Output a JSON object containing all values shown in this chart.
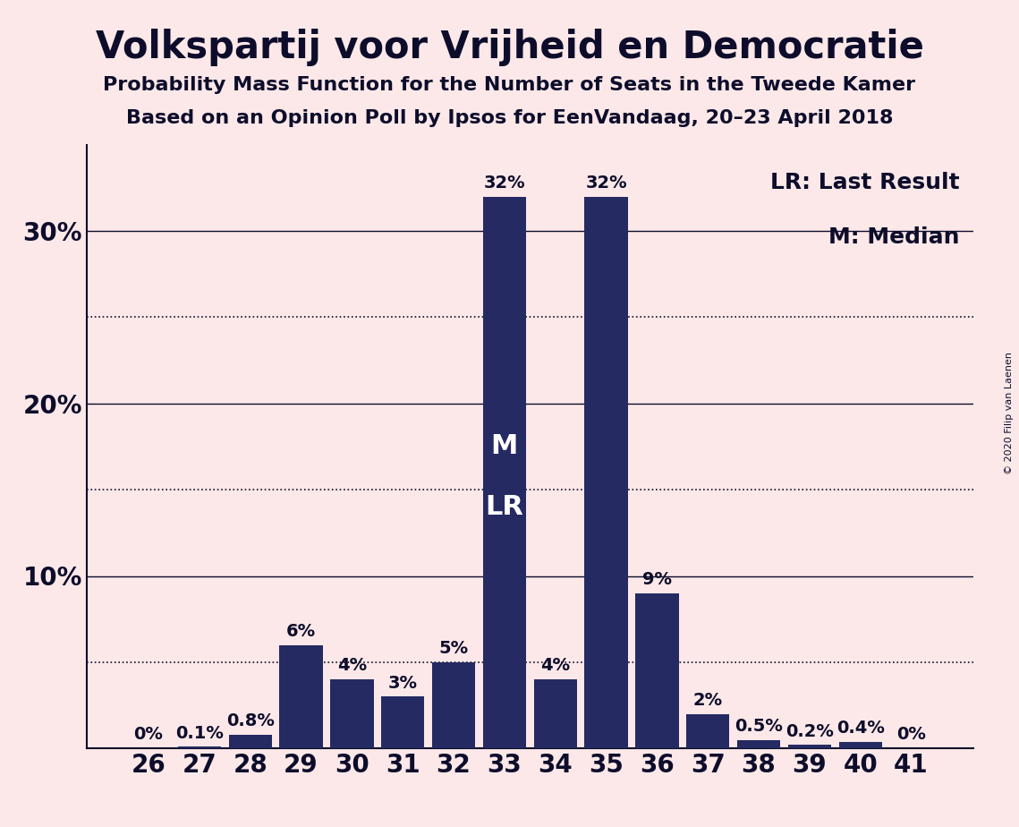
{
  "title": "Volkspartij voor Vrijheid en Democratie",
  "subtitle1": "Probability Mass Function for the Number of Seats in the Tweede Kamer",
  "subtitle2": "Based on an Opinion Poll by Ipsos for EenVandaag, 20–23 April 2018",
  "copyright": "© 2020 Filip van Laenen",
  "legend_lr": "LR: Last Result",
  "legend_m": "M: Median",
  "categories": [
    26,
    27,
    28,
    29,
    30,
    31,
    32,
    33,
    34,
    35,
    36,
    37,
    38,
    39,
    40,
    41
  ],
  "values": [
    0.0,
    0.1,
    0.8,
    6.0,
    4.0,
    3.0,
    5.0,
    32.0,
    4.0,
    32.0,
    9.0,
    2.0,
    0.5,
    0.2,
    0.4,
    0.0
  ],
  "labels": [
    "0%",
    "0.1%",
    "0.8%",
    "6%",
    "4%",
    "3%",
    "5%",
    "32%",
    "4%",
    "32%",
    "9%",
    "2%",
    "0.5%",
    "0.2%",
    "0.4%",
    "0%"
  ],
  "bar_color": "#252a62",
  "background_color": "#fce8e8",
  "text_color": "#0d0d2b",
  "median_seat": 33,
  "median_label": "M",
  "lr_label": "LR",
  "ylim_max": 35,
  "title_fontsize": 30,
  "subtitle_fontsize": 16,
  "bar_label_fontsize": 14,
  "axis_fontsize": 20,
  "legend_fontsize": 18,
  "inside_label_fontsize": 22,
  "solid_lines": [
    10,
    20,
    30
  ],
  "dotted_lines": [
    5,
    15,
    25
  ]
}
